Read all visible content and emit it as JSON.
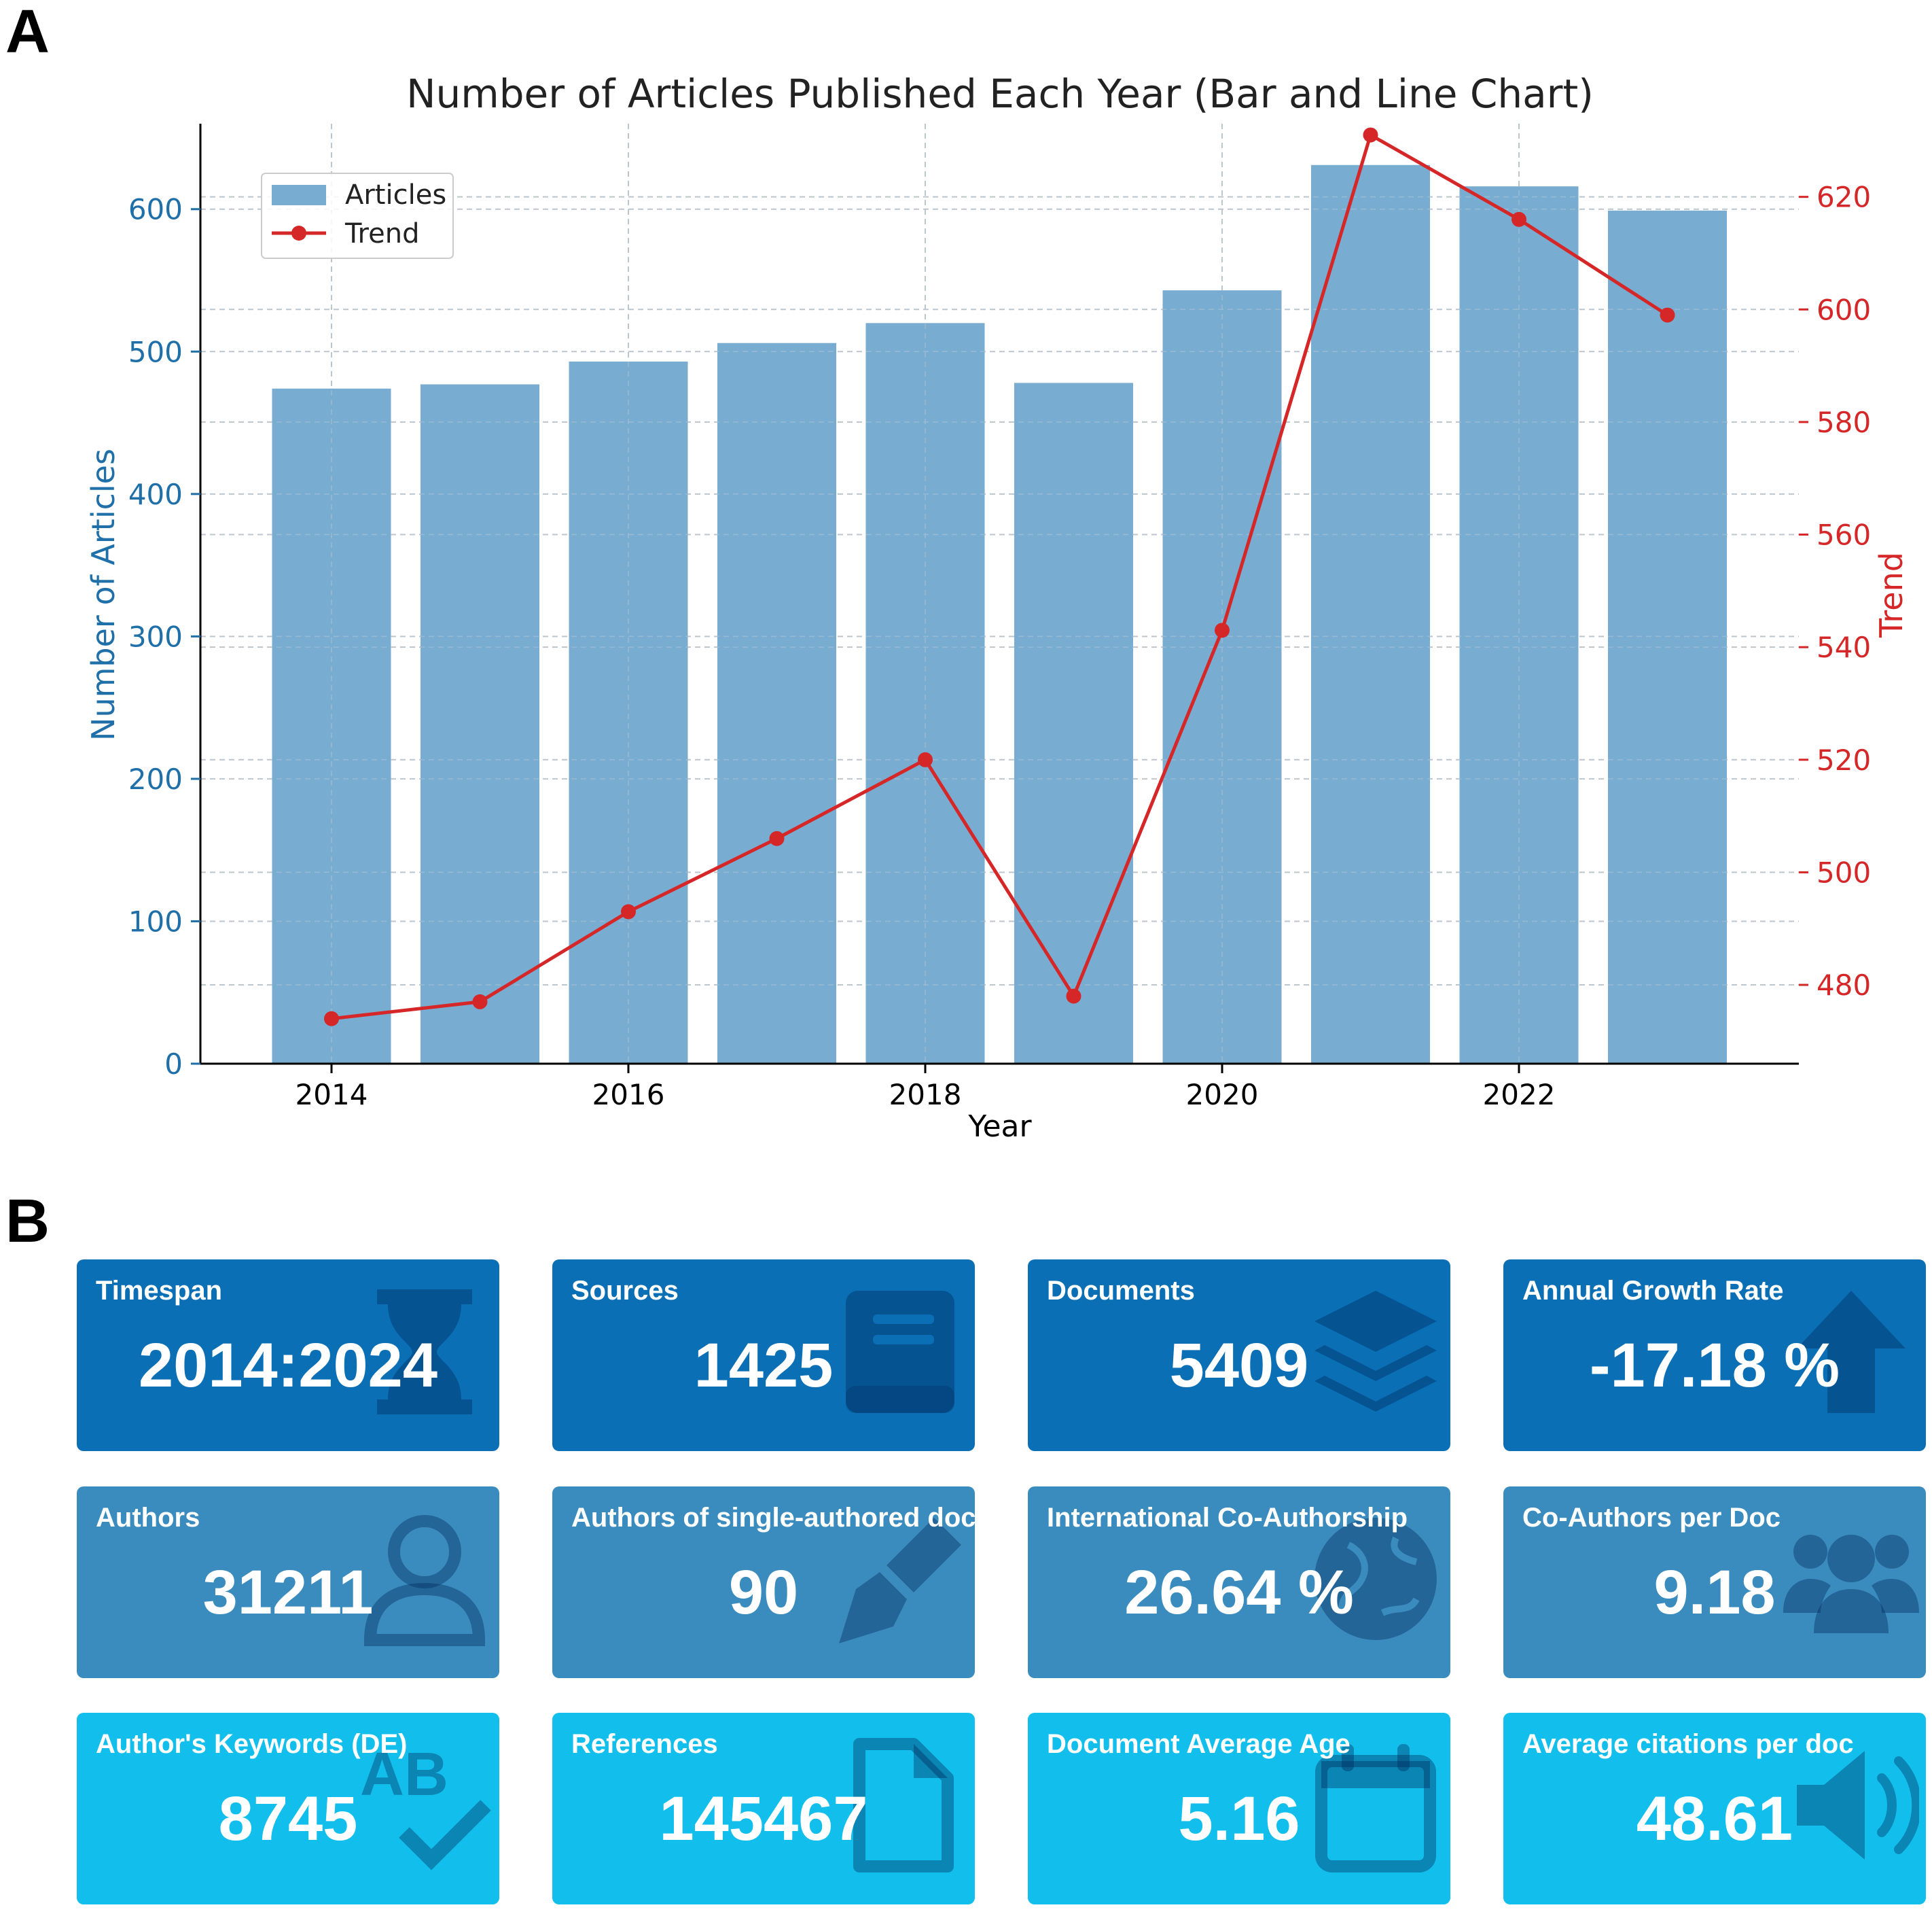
{
  "panels": {
    "a": "A",
    "b": "B"
  },
  "chart_data": {
    "type": "bar+line",
    "title": "Number of Articles Published Each Year (Bar and Line Chart)",
    "xlabel": "Year",
    "ylabel": "Number of Articles",
    "y2label": "Trend",
    "categories": [
      2014,
      2015,
      2016,
      2017,
      2018,
      2019,
      2020,
      2021,
      2022,
      2023
    ],
    "x_ticks": [
      "2014",
      "2016",
      "2018",
      "2020",
      "2022"
    ],
    "ylim": [
      0,
      660
    ],
    "y_ticks": [
      0,
      100,
      200,
      300,
      400,
      500,
      600
    ],
    "y2lim": [
      466,
      633
    ],
    "y2_ticks": [
      480,
      500,
      520,
      540,
      560,
      580,
      600,
      620
    ],
    "series": [
      {
        "name": "Articles",
        "type": "bar",
        "color": "#78acd1",
        "values": [
          474,
          477,
          493,
          506,
          520,
          478,
          543,
          631,
          616,
          599
        ]
      },
      {
        "name": "Trend",
        "type": "line",
        "color": "#d62728",
        "axis": "right",
        "values": [
          474,
          477,
          493,
          506,
          520,
          478,
          543,
          631,
          616,
          599
        ]
      }
    ],
    "legend": {
      "position": "top-left",
      "entries": [
        "Articles",
        "Trend"
      ]
    },
    "grid": true
  },
  "cards": [
    {
      "label": "Timespan",
      "value": "2014:2024",
      "icon": "hourglass-icon",
      "row": 1
    },
    {
      "label": "Sources",
      "value": "1425",
      "icon": "book-icon",
      "row": 1
    },
    {
      "label": "Documents",
      "value": "5409",
      "icon": "layers-icon",
      "row": 1
    },
    {
      "label": "Annual Growth Rate",
      "value": "-17.18 %",
      "icon": "arrow-up-icon",
      "row": 1
    },
    {
      "label": "Authors",
      "value": "31211",
      "icon": "user-icon",
      "row": 2
    },
    {
      "label": "Authors of single-authored docs",
      "value": "90",
      "icon": "pen-nib-icon",
      "row": 2
    },
    {
      "label": "International Co-Authorship",
      "value": "26.64 %",
      "icon": "globe-icon",
      "row": 2
    },
    {
      "label": "Co-Authors per Doc",
      "value": "9.18",
      "icon": "users-icon",
      "row": 2
    },
    {
      "label": "Author's Keywords (DE)",
      "value": "8745",
      "icon": "spell-check-icon",
      "row": 3
    },
    {
      "label": "References",
      "value": "145467",
      "icon": "file-icon",
      "row": 3
    },
    {
      "label": "Document Average Age",
      "value": "5.16",
      "icon": "calendar-icon",
      "row": 3
    },
    {
      "label": "Average citations per doc",
      "value": "48.61",
      "icon": "bullhorn-icon",
      "row": 3
    }
  ],
  "colors": {
    "row1": "#0a6fb5",
    "row2": "#3b8cbe",
    "row3": "#12bfec",
    "axis_left": "#1f6fa8",
    "axis_right": "#d62728"
  }
}
